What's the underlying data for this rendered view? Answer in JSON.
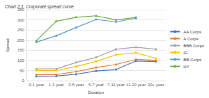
{
  "chart_data": {
    "type": "line",
    "title": "Chart 2.1. Corporate spread curve.",
    "x_label": "Duration",
    "y_label": "Spread",
    "categories": [
      "0-1 year",
      "1-3 year",
      "3-5 year",
      "5-7 year",
      "7-11 year",
      "11-20 year",
      "20+ year"
    ],
    "series": [
      {
        "name": "AA Corps",
        "color": "#4472c4",
        "values": [
          22,
          23,
          32,
          48,
          55,
          97,
          95
        ]
      },
      {
        "name": "A Corps",
        "color": "#ed7d31",
        "values": [
          30,
          30,
          45,
          65,
          80,
          105,
          100
        ]
      },
      {
        "name": "BBB Corps",
        "color": "#a5a5a5",
        "values": [
          58,
          58,
          90,
          115,
          155,
          165,
          155
        ]
      },
      {
        "name": "IG",
        "color": "#ffc000",
        "values": [
          50,
          50,
          70,
          95,
          128,
          138,
          110
        ]
      },
      {
        "name": "BB Corps",
        "color": "#5b9bd5",
        "values": [
          190,
          222,
          262,
          302,
          290,
          308,
          null
        ]
      },
      {
        "name": "HY",
        "color": "#70ad47",
        "values": [
          197,
          293,
          313,
          320,
          300,
          312,
          null
        ]
      }
    ],
    "ylim": [
      0,
      350
    ],
    "yticks": [
      0,
      50,
      100,
      150,
      200,
      250,
      300,
      350
    ],
    "grid": true,
    "legend": "right",
    "marker": "circle"
  }
}
